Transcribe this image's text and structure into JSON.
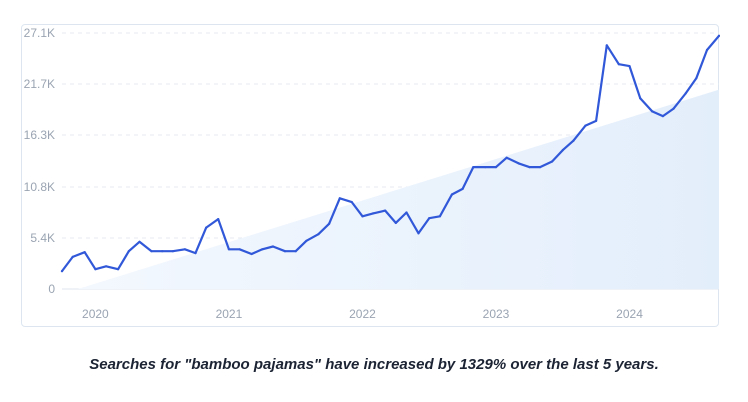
{
  "chart_data": {
    "type": "line",
    "title": "",
    "caption": "Searches for \"bamboo pajamas\" have increased by 1329% over the last 5 years.",
    "y_ticks": [
      {
        "value": 0,
        "label": "0"
      },
      {
        "value": 5400,
        "label": "5.4K"
      },
      {
        "value": 10800,
        "label": "10.8K"
      },
      {
        "value": 16300,
        "label": "16.3K"
      },
      {
        "value": 21700,
        "label": "21.7K"
      },
      {
        "value": 27100,
        "label": "27.1K"
      }
    ],
    "ylim": [
      0,
      27100
    ],
    "x_ticks": [
      {
        "value": 2020.0,
        "label": "2020"
      },
      {
        "value": 2021.0,
        "label": "2021"
      },
      {
        "value": 2022.0,
        "label": "2022"
      },
      {
        "value": 2023.0,
        "label": "2023"
      },
      {
        "value": 2024.0,
        "label": "2024"
      }
    ],
    "xlim": [
      2019.75,
      2024.67
    ],
    "line_color": "#3158d8",
    "trend_fill_color": "#e6f0fc",
    "trend": {
      "start": [
        2019.87,
        0
      ],
      "end": [
        2024.67,
        21100
      ]
    },
    "series": [
      {
        "name": "bamboo pajamas",
        "points": [
          [
            2019.75,
            1900
          ],
          [
            2019.83,
            3400
          ],
          [
            2019.92,
            3900
          ],
          [
            2020.0,
            2100
          ],
          [
            2020.08,
            2400
          ],
          [
            2020.17,
            2100
          ],
          [
            2020.25,
            4000
          ],
          [
            2020.33,
            5000
          ],
          [
            2020.42,
            4000
          ],
          [
            2020.5,
            4000
          ],
          [
            2020.58,
            4000
          ],
          [
            2020.67,
            4200
          ],
          [
            2020.75,
            3800
          ],
          [
            2020.83,
            6500
          ],
          [
            2020.92,
            7400
          ],
          [
            2021.0,
            4200
          ],
          [
            2021.08,
            4200
          ],
          [
            2021.17,
            3700
          ],
          [
            2021.25,
            4200
          ],
          [
            2021.33,
            4500
          ],
          [
            2021.42,
            4000
          ],
          [
            2021.5,
            4000
          ],
          [
            2021.58,
            5100
          ],
          [
            2021.67,
            5800
          ],
          [
            2021.75,
            6900
          ],
          [
            2021.83,
            9600
          ],
          [
            2021.92,
            9200
          ],
          [
            2022.0,
            7700
          ],
          [
            2022.08,
            8000
          ],
          [
            2022.17,
            8300
          ],
          [
            2022.25,
            7000
          ],
          [
            2022.33,
            8100
          ],
          [
            2022.42,
            5900
          ],
          [
            2022.5,
            7500
          ],
          [
            2022.58,
            7700
          ],
          [
            2022.67,
            10000
          ],
          [
            2022.75,
            10600
          ],
          [
            2022.83,
            12900
          ],
          [
            2022.92,
            12900
          ],
          [
            2023.0,
            12900
          ],
          [
            2023.08,
            13900
          ],
          [
            2023.17,
            13300
          ],
          [
            2023.25,
            12900
          ],
          [
            2023.33,
            12900
          ],
          [
            2023.42,
            13500
          ],
          [
            2023.5,
            14700
          ],
          [
            2023.58,
            15700
          ],
          [
            2023.67,
            17300
          ],
          [
            2023.75,
            17800
          ],
          [
            2023.83,
            25800
          ],
          [
            2023.92,
            23800
          ],
          [
            2024.0,
            23600
          ],
          [
            2024.08,
            20200
          ],
          [
            2024.17,
            18800
          ],
          [
            2024.25,
            18300
          ],
          [
            2024.33,
            19100
          ],
          [
            2024.42,
            20700
          ],
          [
            2024.5,
            22300
          ],
          [
            2024.58,
            25300
          ],
          [
            2024.67,
            26800
          ]
        ]
      }
    ]
  }
}
